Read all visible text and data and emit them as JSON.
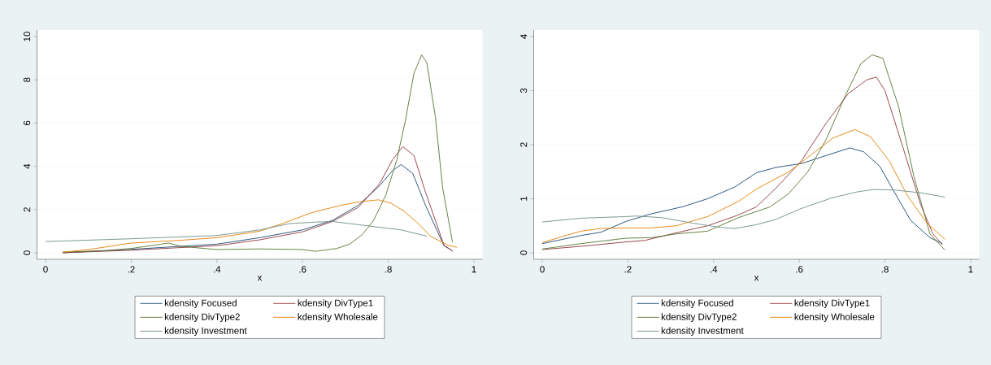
{
  "chart_data": [
    {
      "type": "line",
      "xlabel": "x",
      "xlim": [
        -0.02,
        1.02
      ],
      "ylim": [
        -0.3,
        10.3
      ],
      "xticks": [
        0,
        {
          "value": 0.2,
          "label": ".2"
        },
        {
          "value": 0.4,
          "label": ".4"
        },
        {
          "value": 0.6,
          "label": ".6"
        },
        {
          "value": 0.8,
          "label": ".8"
        },
        1
      ],
      "yticks": [
        0,
        2,
        4,
        6,
        8,
        10
      ],
      "grid": "y",
      "legend": "bottom",
      "line_style": "solid",
      "series": [
        {
          "name": "kdensity Focused",
          "color": "#1a476f",
          "x": [
            0.04,
            0.2,
            0.4,
            0.5,
            0.6,
            0.67,
            0.73,
            0.78,
            0.81,
            0.83,
            0.857,
            0.887,
            0.91,
            0.93,
            0.95
          ],
          "values": [
            0.0,
            0.16,
            0.4,
            0.7,
            1.06,
            1.5,
            2.2,
            3.1,
            3.8,
            4.08,
            3.68,
            2.2,
            1.2,
            0.33,
            0.09
          ]
        },
        {
          "name": "kdensity DivType1",
          "color": "#90353b",
          "x": [
            0.04,
            0.2,
            0.4,
            0.5,
            0.6,
            0.67,
            0.73,
            0.78,
            0.81,
            0.834,
            0.86,
            0.887,
            0.91,
            0.93,
            0.95
          ],
          "values": [
            0.0,
            0.12,
            0.33,
            0.6,
            0.97,
            1.45,
            2.1,
            3.2,
            4.3,
            4.91,
            4.5,
            2.8,
            1.5,
            0.35,
            0.09
          ]
        },
        {
          "name": "kdensity DivType2",
          "color": "#55752f",
          "x": [
            0.04,
            0.14,
            0.2,
            0.27,
            0.287,
            0.316,
            0.4,
            0.5,
            0.6,
            0.63,
            0.68,
            0.71,
            0.74,
            0.766,
            0.795,
            0.82,
            0.84,
            0.86,
            0.878,
            0.89,
            0.91,
            0.927,
            0.95
          ],
          "values": [
            0.03,
            0.1,
            0.2,
            0.4,
            0.45,
            0.3,
            0.15,
            0.18,
            0.15,
            0.07,
            0.2,
            0.4,
            0.85,
            1.5,
            2.7,
            4.3,
            6.1,
            8.3,
            9.15,
            8.8,
            6.3,
            3.0,
            0.5
          ]
        },
        {
          "name": "kdensity Wholesale",
          "color": "#e37e00",
          "x": [
            0.04,
            0.1,
            0.2,
            0.316,
            0.4,
            0.5,
            0.56,
            0.62,
            0.69,
            0.73,
            0.777,
            0.806,
            0.835,
            0.865,
            0.9,
            0.94,
            0.96
          ],
          "values": [
            0.03,
            0.15,
            0.45,
            0.58,
            0.7,
            1.0,
            1.4,
            1.85,
            2.2,
            2.35,
            2.45,
            2.3,
            1.95,
            1.45,
            0.75,
            0.35,
            0.25
          ]
        },
        {
          "name": "kdensity Investment",
          "color": "#6e8e84",
          "x": [
            0.0,
            0.2,
            0.4,
            0.5,
            0.57,
            0.63,
            0.67,
            0.755,
            0.83,
            0.89
          ],
          "values": [
            0.52,
            0.65,
            0.8,
            1.06,
            1.35,
            1.42,
            1.45,
            1.24,
            1.06,
            0.77
          ]
        }
      ]
    },
    {
      "type": "line",
      "xlabel": "x",
      "xlim": [
        -0.02,
        1.02
      ],
      "ylim": [
        -0.12,
        4.12
      ],
      "xticks": [
        0,
        {
          "value": 0.2,
          "label": ".2"
        },
        {
          "value": 0.4,
          "label": ".4"
        },
        {
          "value": 0.6,
          "label": ".6"
        },
        {
          "value": 0.8,
          "label": ".8"
        },
        1
      ],
      "yticks": [
        0,
        1,
        2,
        3,
        4
      ],
      "grid": "y",
      "legend": "bottom",
      "line_style": "solid",
      "series": [
        {
          "name": "kdensity Focused",
          "color": "#1a476f",
          "x": [
            0.0,
            0.09,
            0.137,
            0.195,
            0.254,
            0.327,
            0.386,
            0.45,
            0.5,
            0.546,
            0.605,
            0.663,
            0.718,
            0.75,
            0.788,
            0.825,
            0.86,
            0.905,
            0.934
          ],
          "values": [
            0.17,
            0.32,
            0.38,
            0.58,
            0.72,
            0.85,
            1.0,
            1.22,
            1.48,
            1.58,
            1.65,
            1.8,
            1.94,
            1.87,
            1.6,
            1.08,
            0.6,
            0.28,
            0.17
          ]
        },
        {
          "name": "kdensity DivType1",
          "color": "#90353b",
          "x": [
            0.0,
            0.09,
            0.195,
            0.24,
            0.313,
            0.386,
            0.458,
            0.5,
            0.546,
            0.605,
            0.663,
            0.715,
            0.758,
            0.78,
            0.8,
            0.84,
            0.883,
            0.912,
            0.934
          ],
          "values": [
            0.06,
            0.12,
            0.2,
            0.23,
            0.37,
            0.5,
            0.7,
            0.85,
            1.2,
            1.7,
            2.4,
            2.95,
            3.2,
            3.25,
            3.0,
            2.0,
            0.9,
            0.35,
            0.15
          ]
        },
        {
          "name": "kdensity DivType2",
          "color": "#55752f",
          "x": [
            0.0,
            0.09,
            0.195,
            0.254,
            0.313,
            0.386,
            0.458,
            0.532,
            0.576,
            0.62,
            0.663,
            0.707,
            0.744,
            0.77,
            0.795,
            0.832,
            0.868,
            0.905,
            0.94
          ],
          "values": [
            0.07,
            0.17,
            0.27,
            0.28,
            0.35,
            0.4,
            0.65,
            0.85,
            1.1,
            1.5,
            2.1,
            2.9,
            3.5,
            3.66,
            3.6,
            2.7,
            1.4,
            0.35,
            0.05
          ]
        },
        {
          "name": "kdensity Wholesale",
          "color": "#e37e00",
          "x": [
            0.0,
            0.09,
            0.137,
            0.195,
            0.254,
            0.313,
            0.386,
            0.458,
            0.5,
            0.576,
            0.634,
            0.678,
            0.73,
            0.766,
            0.81,
            0.853,
            0.898,
            0.94
          ],
          "values": [
            0.19,
            0.4,
            0.45,
            0.46,
            0.46,
            0.5,
            0.67,
            0.95,
            1.18,
            1.5,
            1.85,
            2.12,
            2.28,
            2.15,
            1.7,
            1.05,
            0.55,
            0.25
          ]
        },
        {
          "name": "kdensity Investment",
          "color": "#6e8e84",
          "x": [
            0.0,
            0.09,
            0.195,
            0.22,
            0.28,
            0.35,
            0.415,
            0.45,
            0.5,
            0.546,
            0.605,
            0.678,
            0.737,
            0.773,
            0.825,
            0.883,
            0.94
          ],
          "values": [
            0.57,
            0.64,
            0.67,
            0.68,
            0.65,
            0.55,
            0.47,
            0.45,
            0.52,
            0.62,
            0.82,
            1.02,
            1.13,
            1.17,
            1.16,
            1.11,
            1.03
          ]
        }
      ]
    }
  ]
}
